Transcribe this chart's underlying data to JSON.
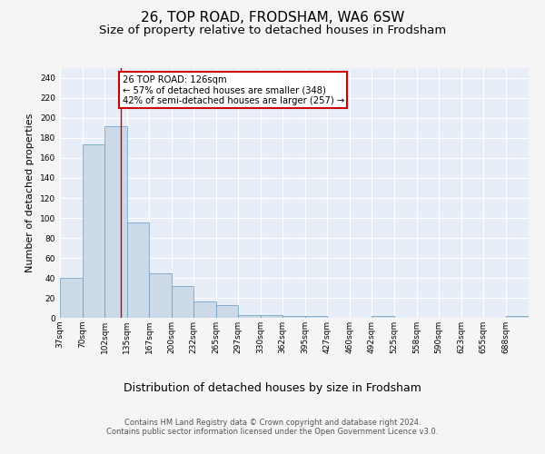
{
  "title1": "26, TOP ROAD, FRODSHAM, WA6 6SW",
  "title2": "Size of property relative to detached houses in Frodsham",
  "xlabel": "Distribution of detached houses by size in Frodsham",
  "ylabel": "Number of detached properties",
  "bar_values": [
    40,
    174,
    192,
    95,
    45,
    32,
    16,
    13,
    3,
    3,
    2,
    2,
    0,
    0,
    2,
    0,
    0,
    0,
    0,
    0,
    2
  ],
  "bin_edges": [
    37,
    70,
    102,
    135,
    167,
    200,
    232,
    265,
    297,
    330,
    362,
    395,
    427,
    460,
    492,
    525,
    558,
    590,
    623,
    655,
    688,
    721
  ],
  "tick_labels": [
    "37sqm",
    "70sqm",
    "102sqm",
    "135sqm",
    "167sqm",
    "200sqm",
    "232sqm",
    "265sqm",
    "297sqm",
    "330sqm",
    "362sqm",
    "395sqm",
    "427sqm",
    "460sqm",
    "492sqm",
    "525sqm",
    "558sqm",
    "590sqm",
    "623sqm",
    "655sqm",
    "688sqm"
  ],
  "bar_color": "#ccd9e8",
  "bar_edge_color": "#6699bb",
  "red_line_x": 126,
  "ylim": [
    0,
    250
  ],
  "yticks": [
    0,
    20,
    40,
    60,
    80,
    100,
    120,
    140,
    160,
    180,
    200,
    220,
    240
  ],
  "annotation_box_text": "26 TOP ROAD: 126sqm\n← 57% of detached houses are smaller (348)\n42% of semi-detached houses are larger (257) →",
  "annotation_box_color": "#ffffff",
  "annotation_box_edge_color": "#cc0000",
  "background_color": "#e8eef8",
  "grid_color": "#ffffff",
  "footer_text": "Contains HM Land Registry data © Crown copyright and database right 2024.\nContains public sector information licensed under the Open Government Licence v3.0.",
  "title1_fontsize": 11,
  "title2_fontsize": 9.5,
  "ylabel_fontsize": 8,
  "xlabel_fontsize": 9,
  "tick_fontsize": 6.5,
  "footer_fontsize": 6,
  "fig_bg": "#f5f5f5"
}
